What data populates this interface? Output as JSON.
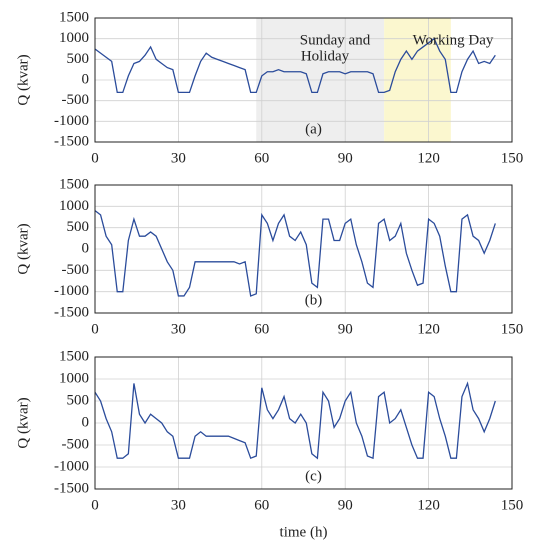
{
  "chart_data": [
    {
      "type": "line",
      "ylabel": "Q (kvar)",
      "panel_label": "(a)",
      "annotations": [
        "Sunday and",
        "Holiday",
        "Working Day"
      ],
      "highlights": [
        {
          "x": [
            58,
            104
          ],
          "color": "#eeeeee"
        },
        {
          "x": [
            104,
            128
          ],
          "color": "#fbf7cf"
        }
      ],
      "xlim": [
        0,
        150
      ],
      "xticks": [
        0,
        30,
        60,
        90,
        120,
        150
      ],
      "ylim": [
        -1500,
        1500
      ],
      "yticks": [
        -1500,
        -1000,
        -500,
        0,
        500,
        1000,
        1500
      ],
      "grid": true,
      "series": [
        {
          "color": "#2b4c9b",
          "x": [
            0,
            2,
            4,
            6,
            8,
            10,
            12,
            14,
            16,
            18,
            20,
            22,
            24,
            26,
            28,
            30,
            32,
            34,
            36,
            38,
            40,
            42,
            44,
            46,
            48,
            50,
            52,
            54,
            56,
            58,
            60,
            62,
            64,
            66,
            68,
            70,
            72,
            74,
            76,
            78,
            80,
            82,
            84,
            86,
            88,
            90,
            92,
            94,
            96,
            98,
            100,
            102,
            104,
            106,
            108,
            110,
            112,
            114,
            116,
            118,
            120,
            122,
            124,
            126,
            128,
            130,
            132,
            134,
            136,
            138,
            140,
            142,
            144
          ],
          "values": [
            750,
            650,
            550,
            450,
            -300,
            -300,
            100,
            400,
            450,
            600,
            800,
            500,
            400,
            300,
            250,
            -300,
            -300,
            -300,
            100,
            450,
            650,
            550,
            500,
            450,
            400,
            350,
            300,
            250,
            -300,
            -300,
            100,
            200,
            200,
            250,
            200,
            200,
            200,
            200,
            150,
            -300,
            -300,
            150,
            200,
            200,
            200,
            150,
            200,
            200,
            200,
            200,
            150,
            -300,
            -300,
            -250,
            200,
            500,
            700,
            500,
            700,
            800,
            900,
            1000,
            700,
            500,
            -300,
            -300,
            200,
            500,
            700,
            400,
            450,
            400,
            600
          ]
        }
      ]
    },
    {
      "type": "line",
      "ylabel": "Q (kvar)",
      "panel_label": "(b)",
      "xlim": [
        0,
        150
      ],
      "xticks": [
        0,
        30,
        60,
        90,
        120,
        150
      ],
      "ylim": [
        -1500,
        1500
      ],
      "yticks": [
        -1500,
        -1000,
        -500,
        0,
        500,
        1000,
        1500
      ],
      "grid": true,
      "series": [
        {
          "color": "#2b4c9b",
          "x": [
            0,
            2,
            4,
            6,
            8,
            10,
            12,
            14,
            16,
            18,
            20,
            22,
            24,
            26,
            28,
            30,
            32,
            34,
            36,
            38,
            40,
            42,
            44,
            46,
            48,
            50,
            52,
            54,
            56,
            58,
            60,
            62,
            64,
            66,
            68,
            70,
            72,
            74,
            76,
            78,
            80,
            82,
            84,
            86,
            88,
            90,
            92,
            94,
            96,
            98,
            100,
            102,
            104,
            106,
            108,
            110,
            112,
            114,
            116,
            118,
            120,
            122,
            124,
            126,
            128,
            130,
            132,
            134,
            136,
            138,
            140,
            142,
            144
          ],
          "values": [
            900,
            800,
            300,
            100,
            -1000,
            -1000,
            200,
            700,
            300,
            300,
            400,
            300,
            0,
            -300,
            -500,
            -1100,
            -1100,
            -900,
            -300,
            -300,
            -300,
            -300,
            -300,
            -300,
            -300,
            -300,
            -350,
            -300,
            -1100,
            -1050,
            800,
            600,
            200,
            600,
            800,
            300,
            200,
            400,
            100,
            -800,
            -900,
            700,
            700,
            200,
            200,
            600,
            700,
            100,
            -300,
            -800,
            -900,
            600,
            700,
            200,
            300,
            600,
            -100,
            -500,
            -850,
            -800,
            700,
            600,
            300,
            -400,
            -1000,
            -1000,
            700,
            800,
            300,
            200,
            -100,
            200,
            600
          ]
        }
      ]
    },
    {
      "type": "line",
      "ylabel": "Q (kvar)",
      "panel_label": "(c)",
      "xlabel": "time (h)",
      "xlim": [
        0,
        150
      ],
      "xticks": [
        0,
        30,
        60,
        90,
        120,
        150
      ],
      "ylim": [
        -1500,
        1500
      ],
      "yticks": [
        -1500,
        -1000,
        -500,
        0,
        500,
        1000,
        1500
      ],
      "grid": true,
      "series": [
        {
          "color": "#2b4c9b",
          "x": [
            0,
            2,
            4,
            6,
            8,
            10,
            12,
            14,
            16,
            18,
            20,
            22,
            24,
            26,
            28,
            30,
            32,
            34,
            36,
            38,
            40,
            42,
            44,
            46,
            48,
            50,
            52,
            54,
            56,
            58,
            60,
            62,
            64,
            66,
            68,
            70,
            72,
            74,
            76,
            78,
            80,
            82,
            84,
            86,
            88,
            90,
            92,
            94,
            96,
            98,
            100,
            102,
            104,
            106,
            108,
            110,
            112,
            114,
            116,
            118,
            120,
            122,
            124,
            126,
            128,
            130,
            132,
            134,
            136,
            138,
            140,
            142,
            144
          ],
          "values": [
            700,
            500,
            100,
            -200,
            -800,
            -800,
            -700,
            900,
            200,
            0,
            200,
            100,
            0,
            -200,
            -300,
            -800,
            -800,
            -800,
            -300,
            -200,
            -300,
            -300,
            -300,
            -300,
            -300,
            -350,
            -400,
            -450,
            -800,
            -750,
            800,
            300,
            100,
            300,
            600,
            100,
            0,
            200,
            0,
            -700,
            -800,
            700,
            500,
            -100,
            100,
            500,
            700,
            0,
            -300,
            -750,
            -800,
            600,
            700,
            0,
            100,
            300,
            -100,
            -500,
            -800,
            -800,
            700,
            600,
            100,
            -300,
            -800,
            -800,
            600,
            900,
            300,
            100,
            -200,
            100,
            500
          ]
        }
      ]
    }
  ]
}
